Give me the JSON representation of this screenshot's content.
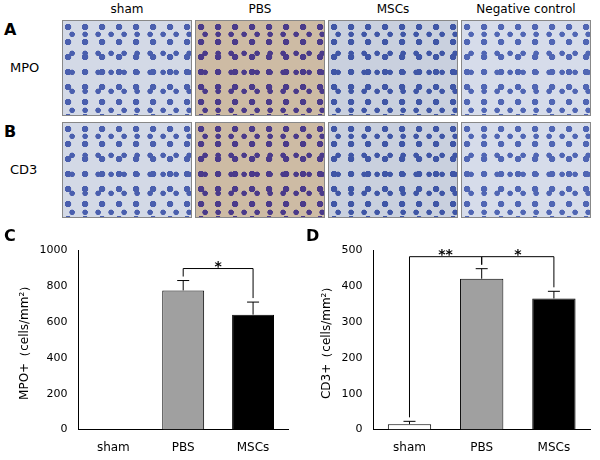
{
  "image_panels": {
    "columns": [
      "sham",
      "PBS",
      "MSCs",
      "Negative control"
    ],
    "rows": [
      {
        "panel_label": "A",
        "label": "MPO"
      },
      {
        "panel_label": "B",
        "label": "CD3"
      }
    ]
  },
  "chart_data": [
    {
      "panel_label": "C",
      "type": "bar",
      "ylabel": "MPO+（cells/mm²）",
      "categories": [
        "sham",
        "PBS",
        "MSCs"
      ],
      "values": [
        0,
        775,
        640
      ],
      "errors": [
        0,
        55,
        70
      ],
      "colors": [
        "#ffffff",
        "#a0a0a0",
        "#000000"
      ],
      "ylim": [
        0,
        1000
      ],
      "yticks": [
        0,
        200,
        400,
        600,
        800,
        1000
      ],
      "grid": false,
      "annotations": [
        {
          "text": "*",
          "from": "PBS",
          "to": "MSCs"
        }
      ]
    },
    {
      "panel_label": "D",
      "type": "bar",
      "ylabel": "CD3+（cells/mm²）",
      "categories": [
        "sham",
        "PBS",
        "MSCs"
      ],
      "values": [
        15,
        420,
        365
      ],
      "errors": [
        8,
        28,
        20
      ],
      "colors": [
        "#ffffff",
        "#a0a0a0",
        "#000000"
      ],
      "ylim": [
        0,
        500
      ],
      "yticks": [
        0,
        100,
        200,
        300,
        400,
        500
      ],
      "grid": false,
      "annotations": [
        {
          "text": "**",
          "from": "sham",
          "to": "PBS"
        },
        {
          "text": "*",
          "from": "PBS",
          "to": "MSCs"
        }
      ]
    }
  ]
}
